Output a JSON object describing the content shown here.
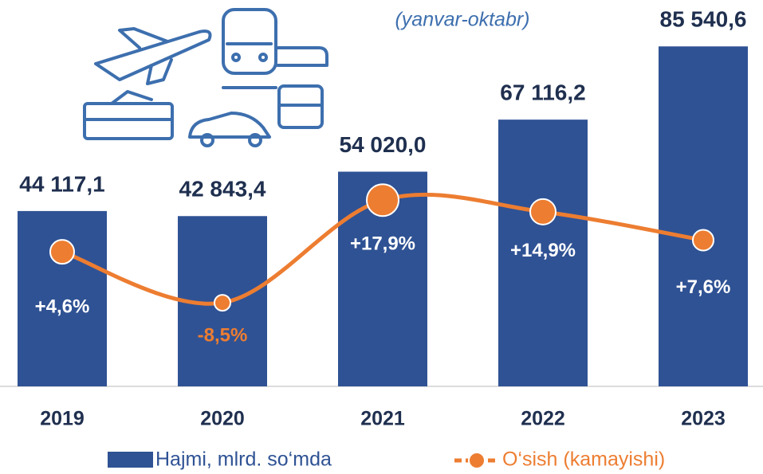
{
  "chart_data": {
    "type": "bar_line",
    "subtitle": "(yanvar-oktabr)",
    "categories": [
      "2019",
      "2020",
      "2021",
      "2022",
      "2023"
    ],
    "series": [
      {
        "name": "Hajmi, mlrd. so‘mda",
        "type": "bar",
        "color": "#2f5294",
        "values": [
          44117.1,
          42843.4,
          54020.0,
          67116.2,
          85540.6
        ],
        "value_labels": [
          "44 117,1",
          "42 843,4",
          "54 020,0",
          "67 116,2",
          "85 540,6"
        ]
      },
      {
        "name": "O‘sish (kamayishi)",
        "type": "line",
        "axis": "y2",
        "color": "#ed7d31",
        "values": [
          4.6,
          -8.5,
          17.9,
          14.9,
          7.6
        ],
        "value_labels": [
          "+4,6%",
          "-8,5%",
          "+17,9%",
          "+14,9%",
          "+7,6%"
        ]
      }
    ],
    "ylim": [
      0,
      90000
    ],
    "y2lim": [
      -30,
      62
    ]
  }
}
